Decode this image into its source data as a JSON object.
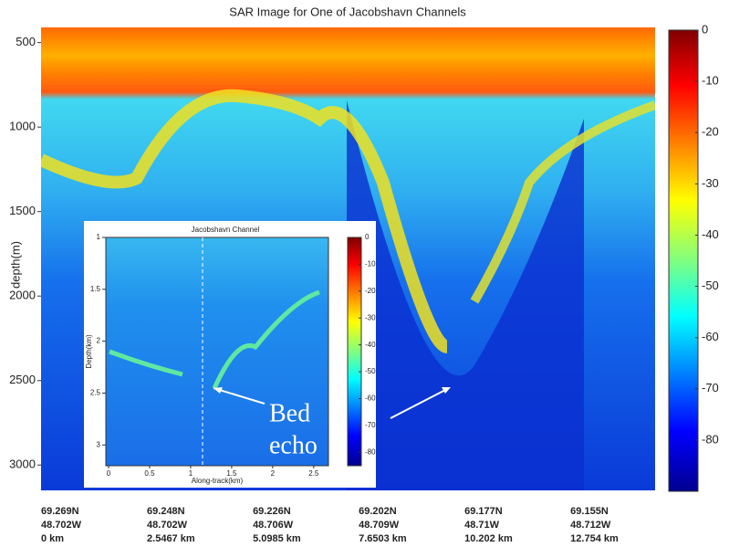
{
  "chart_data": [
    {
      "type": "heatmap",
      "title": "SAR Image for One of Jacobshavn Channels",
      "y_label": "depth(m)",
      "ylim": [
        3150,
        410
      ],
      "yticks": [
        500,
        1000,
        1500,
        2000,
        2500,
        3000
      ],
      "x_labels": [
        {
          "lat": "69.269N",
          "lon": "48.702W",
          "dist": "0 km"
        },
        {
          "lat": "69.248N",
          "lon": "48.702W",
          "dist": "2.5467 km"
        },
        {
          "lat": "69.226N",
          "lon": "48.706W",
          "dist": "5.0985 km"
        },
        {
          "lat": "69.202N",
          "lon": "48.709W",
          "dist": "7.6503 km"
        },
        {
          "lat": "69.177N",
          "lon": "48.71W",
          "dist": "10.202 km"
        },
        {
          "lat": "69.155N",
          "lon": "48.712W",
          "dist": "12.754 km"
        }
      ],
      "clim": [
        -90,
        0
      ],
      "cticks": [
        0,
        -10,
        -20,
        -30,
        -40,
        -50,
        -60,
        -70,
        -80
      ],
      "annotation": [
        "Bed",
        "echo"
      ]
    },
    {
      "type": "heatmap",
      "title": "Jacobshavn Channel",
      "x_label": "Along-track(km)",
      "y_label": "Depth(km)",
      "xlim": [
        0,
        2.68
      ],
      "xticks": [
        0,
        0.5,
        1,
        1.5,
        2,
        2.5
      ],
      "ylim": [
        3.2,
        1
      ],
      "yticks": [
        1,
        1.5,
        2,
        2.5,
        3
      ],
      "clim": [
        -85,
        0
      ],
      "cticks": [
        0,
        -10,
        -20,
        -30,
        -40,
        -50,
        -60,
        -70,
        -80
      ]
    }
  ]
}
